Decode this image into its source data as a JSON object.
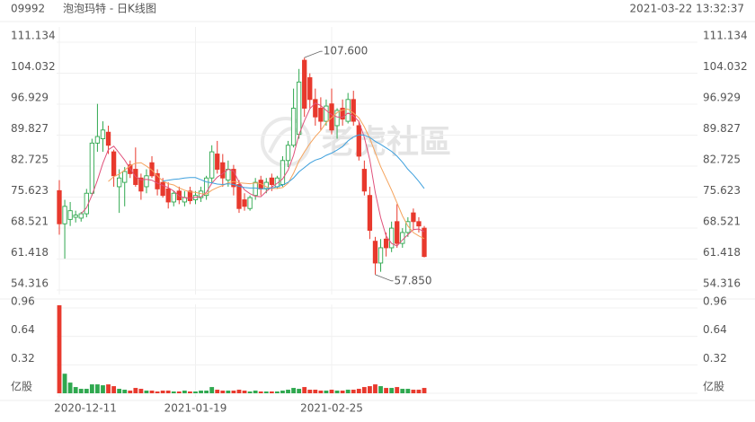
{
  "header": {
    "code": "09992",
    "title": "泡泡玛特 - 日K线图",
    "timestamp": "2021-03-22 13:32:37"
  },
  "chart_data": {
    "type": "candlestick",
    "watermark": "老虎社區",
    "categories": [
      "2020-12-11",
      null,
      null,
      null,
      null,
      null,
      null,
      null,
      null,
      null,
      null,
      null,
      null,
      null,
      null,
      null,
      null,
      null,
      null,
      null,
      null,
      null,
      null,
      null,
      null,
      "2021-01-19",
      null,
      null,
      null,
      null,
      null,
      null,
      null,
      null,
      null,
      null,
      null,
      null,
      null,
      null,
      null,
      null,
      null,
      null,
      null,
      null,
      null,
      null,
      null,
      null,
      "2021-02-25",
      null,
      null,
      null,
      null,
      null,
      null,
      null,
      null,
      null,
      null,
      null,
      null,
      null,
      null,
      null,
      null,
      null
    ],
    "open": [
      77.1,
      69.5,
      70.5,
      71,
      70.8,
      71.8,
      76.5,
      88,
      89,
      90.5,
      86,
      78,
      79,
      83,
      82,
      80,
      78,
      83.5,
      81,
      79,
      77.5,
      74.5,
      77,
      74.5,
      77,
      75,
      75.5,
      76,
      80,
      85.5,
      83.5,
      79.5,
      82,
      78.5,
      75,
      73,
      76,
      79.5,
      77.5,
      80,
      78,
      78.5,
      84,
      87.5,
      90,
      107,
      103,
      98,
      96,
      93,
      97,
      92,
      96,
      93,
      98,
      92,
      82,
      76,
      65.5,
      60.5,
      66,
      64,
      70,
      65,
      67.5,
      72,
      70,
      68.5
    ],
    "high": [
      79.5,
      75,
      74.5,
      72.5,
      72.2,
      77.5,
      89,
      97,
      93,
      92,
      86.5,
      82,
      82.5,
      84,
      87,
      81,
      82,
      85,
      82,
      80,
      79,
      77,
      78,
      77,
      78,
      77,
      78,
      80.5,
      87.5,
      88.5,
      85.5,
      84,
      83,
      79.5,
      76.5,
      76,
      80,
      80.5,
      80,
      81,
      80.5,
      85,
      88.5,
      100.5,
      105,
      107.6,
      104,
      100.5,
      98.5,
      98,
      100.5,
      96,
      98,
      99.5,
      100,
      93,
      84,
      78,
      66.5,
      66,
      67.5,
      70,
      74,
      68.5,
      71,
      73,
      71,
      69
    ],
    "low": [
      67,
      61.5,
      69,
      69.8,
      70,
      71,
      76,
      86,
      86,
      85.5,
      78,
      72,
      73.5,
      80,
      78,
      75,
      76.5,
      80,
      76,
      75.5,
      73,
      73.5,
      74,
      73.5,
      74,
      74,
      74.5,
      75,
      79,
      81,
      78,
      78,
      76,
      72,
      72.5,
      72.5,
      75,
      76,
      76.5,
      77,
      77.5,
      78,
      82.5,
      87,
      89,
      94,
      96,
      92,
      91,
      92,
      90,
      89,
      92,
      92.5,
      92,
      84,
      76,
      66,
      57.85,
      58.5,
      62,
      63,
      64,
      64,
      66.5,
      68,
      67.5,
      61.8
    ],
    "close": [
      69.5,
      73.5,
      72.5,
      71.5,
      71.8,
      76.5,
      88,
      89.5,
      91,
      87.5,
      80.5,
      80,
      81.5,
      81,
      78.5,
      77,
      80.5,
      80.5,
      77.5,
      76,
      74.5,
      76.5,
      75,
      75.5,
      74.8,
      76,
      77,
      80,
      86,
      82,
      80,
      82,
      78,
      73,
      73.5,
      75.5,
      79,
      77.5,
      79,
      78.5,
      80,
      84,
      87.5,
      96,
      102,
      96,
      98,
      94,
      93,
      96.5,
      91,
      95.5,
      93.5,
      98,
      93,
      85,
      77,
      68,
      60.5,
      64,
      64,
      68.5,
      65,
      67.5,
      70,
      70,
      69,
      62
    ],
    "up_color": "#2fa84f",
    "down_color": "#e8392d",
    "ylim": [
      54.316,
      111.134
    ],
    "yticks": [
      111.134,
      104.032,
      96.929,
      89.827,
      82.725,
      75.623,
      68.521,
      61.418,
      54.316
    ],
    "grid": true,
    "ma": [
      {
        "color": "#e0507a",
        "values": [
          null,
          null,
          null,
          null,
          71.8,
          73.2,
          76.1,
          79.5,
          83.4,
          86.5,
          87.3,
          85.7,
          84.1,
          82.1,
          80.3,
          79.6,
          79.7,
          79.5,
          78.8,
          78.3,
          77.8,
          77,
          75.9,
          75.5,
          75.3,
          75.6,
          75.7,
          76.7,
          78.8,
          80.2,
          81,
          82,
          81.6,
          79,
          77.3,
          76.4,
          75.8,
          75.7,
          76.9,
          77.9,
          78.8,
          79.8,
          81.8,
          85.2,
          89.9,
          93.1,
          95.9,
          97.2,
          96.6,
          95.5,
          94.5,
          94,
          93.9,
          94.9,
          94.2,
          93,
          89.3,
          84.2,
          76.7,
          70.9,
          66.7,
          65,
          64.4,
          65.8,
          67,
          68.2,
          68.3,
          67.7
        ]
      },
      {
        "color": "#f5a35c",
        "values": [
          null,
          null,
          null,
          null,
          null,
          null,
          null,
          null,
          null,
          79.2,
          80.3,
          80.9,
          81.8,
          82.8,
          83.4,
          83.5,
          82.7,
          81.8,
          80.5,
          79.3,
          78.7,
          78.4,
          77.7,
          77.2,
          76.8,
          76.7,
          76.4,
          76.3,
          77.2,
          77.8,
          78.3,
          78.9,
          79.2,
          78.9,
          78.8,
          78.7,
          78.9,
          78.7,
          78,
          77.6,
          77.6,
          77.8,
          78.8,
          81.1,
          83.9,
          86,
          87.9,
          89.5,
          90.9,
          92.7,
          93.8,
          95,
          95.6,
          95.8,
          94.9,
          93.8,
          91.7,
          89.1,
          85.8,
          82.6,
          79.9,
          77.2,
          74.3,
          71.3,
          69,
          67.5,
          66.7,
          66.1
        ]
      },
      {
        "color": "#3ea0dd",
        "values": [
          null,
          null,
          null,
          null,
          null,
          null,
          null,
          null,
          null,
          null,
          null,
          null,
          null,
          null,
          null,
          null,
          null,
          null,
          null,
          79.3,
          79.5,
          79.7,
          79.8,
          80,
          80.1,
          80.1,
          79.6,
          79.1,
          78.9,
          78.6,
          78.5,
          78.7,
          78.5,
          78.1,
          77.8,
          77.7,
          77.7,
          77.5,
          77.6,
          77.7,
          78,
          78.4,
          79,
          80,
          81.4,
          82.4,
          83.4,
          84.1,
          84.5,
          85.2,
          85.7,
          86.4,
          87.2,
          88.5,
          89.4,
          89.9,
          89.8,
          89.3,
          88.4,
          87.7,
          86.9,
          86.1,
          85,
          83.6,
          82,
          80.7,
          79.2,
          77.6
        ]
      }
    ],
    "annotations": [
      {
        "value": 107.6,
        "label": "107.600"
      },
      {
        "value": 57.85,
        "label": "57.850"
      }
    ],
    "volume": {
      "values": [
        0.99,
        0.22,
        0.12,
        0.07,
        0.05,
        0.05,
        0.1,
        0.1,
        0.09,
        0.1,
        0.08,
        0.05,
        0.04,
        0.03,
        0.06,
        0.05,
        0.03,
        0.03,
        0.02,
        0.03,
        0.03,
        0.02,
        0.02,
        0.03,
        0.02,
        0.02,
        0.03,
        0.03,
        0.07,
        0.04,
        0.03,
        0.03,
        0.03,
        0.04,
        0.03,
        0.02,
        0.03,
        0.02,
        0.02,
        0.02,
        0.02,
        0.03,
        0.04,
        0.06,
        0.05,
        0.07,
        0.04,
        0.04,
        0.03,
        0.03,
        0.04,
        0.03,
        0.03,
        0.04,
        0.04,
        0.05,
        0.07,
        0.08,
        0.1,
        0.08,
        0.06,
        0.06,
        0.07,
        0.05,
        0.05,
        0.04,
        0.04,
        0.06
      ],
      "ylim": [
        0,
        1.0
      ],
      "yticks": [
        0.96,
        0.64,
        0.32,
        {
          "value": 0,
          "label": "亿股"
        }
      ]
    }
  }
}
